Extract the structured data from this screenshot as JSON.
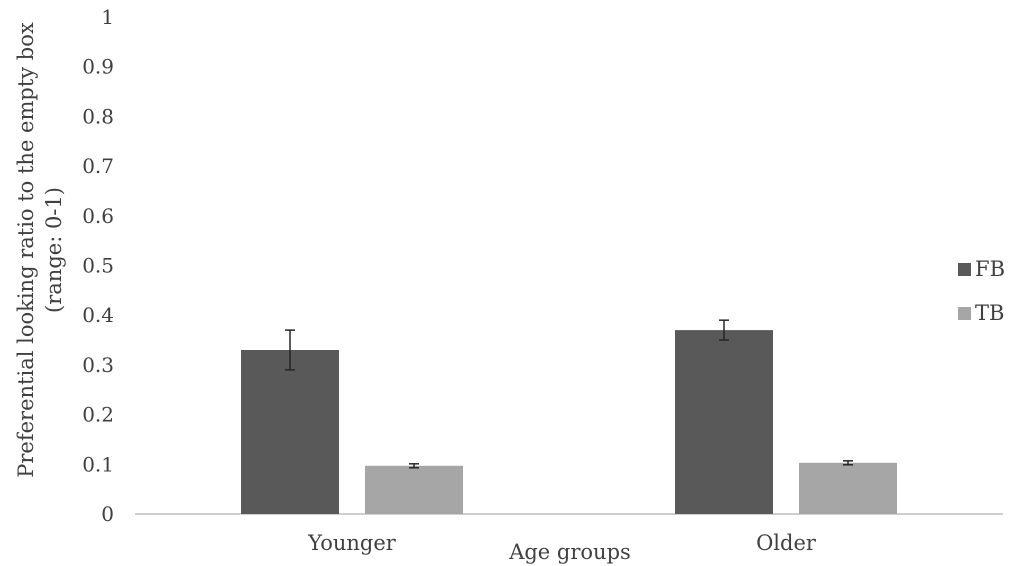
{
  "chart_data": {
    "type": "bar",
    "title": "",
    "xlabel": "Age groups",
    "ylabel_lines": [
      "Preferential looking ratio to the empty box",
      "(range: 0-1)"
    ],
    "categories": [
      "Younger",
      "Older"
    ],
    "series": [
      {
        "name": "FB",
        "values": [
          0.33,
          0.37
        ],
        "errors": [
          0.04,
          0.02
        ],
        "color": "#595959"
      },
      {
        "name": "TB",
        "values": [
          0.097,
          0.103
        ],
        "errors": [
          0.004,
          0.004
        ],
        "color": "#a6a6a6"
      }
    ],
    "yticks": [
      "0",
      "0.1",
      "0.2",
      "0.3",
      "0.4",
      "0.5",
      "0.6",
      "0.7",
      "0.8",
      "0.9",
      "1"
    ],
    "ylim": [
      0,
      1
    ],
    "grid": false,
    "legend_position": "right"
  }
}
